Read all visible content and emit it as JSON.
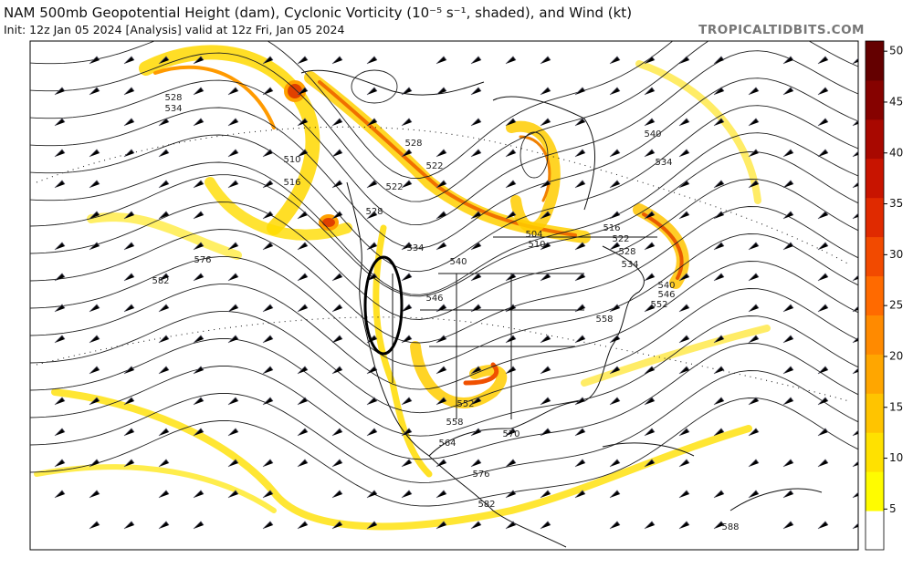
{
  "header": {
    "title": "NAM 500mb Geopotential Height (dam), Cyclonic Vorticity (10⁻⁵ s⁻¹, shaded), and Wind (kt)",
    "subtitle": "Init: 12z Jan 05 2024   [Analysis]   valid at 12z Fri, Jan 05 2024",
    "source": "TROPICALTIDBITS.COM"
  },
  "colorbar": {
    "range": [
      1,
      51
    ],
    "ticks": [
      5,
      10,
      15,
      20,
      25,
      30,
      35,
      40,
      45,
      50
    ],
    "colors": [
      "#ffffff",
      "#fffc00",
      "#ffe100",
      "#ffc400",
      "#ffa600",
      "#ff8a00",
      "#ff6a00",
      "#f24a00",
      "#e02a00",
      "#c81400",
      "#a80800",
      "#860200",
      "#640000"
    ]
  },
  "map": {
    "contour_labels": [
      528,
      534,
      510,
      516,
      528,
      522,
      522,
      528,
      534,
      540,
      546,
      576,
      582,
      540,
      534,
      504,
      510,
      516,
      522,
      528,
      534,
      540,
      546,
      552,
      558,
      552,
      558,
      564,
      570,
      576,
      582,
      588
    ]
  }
}
